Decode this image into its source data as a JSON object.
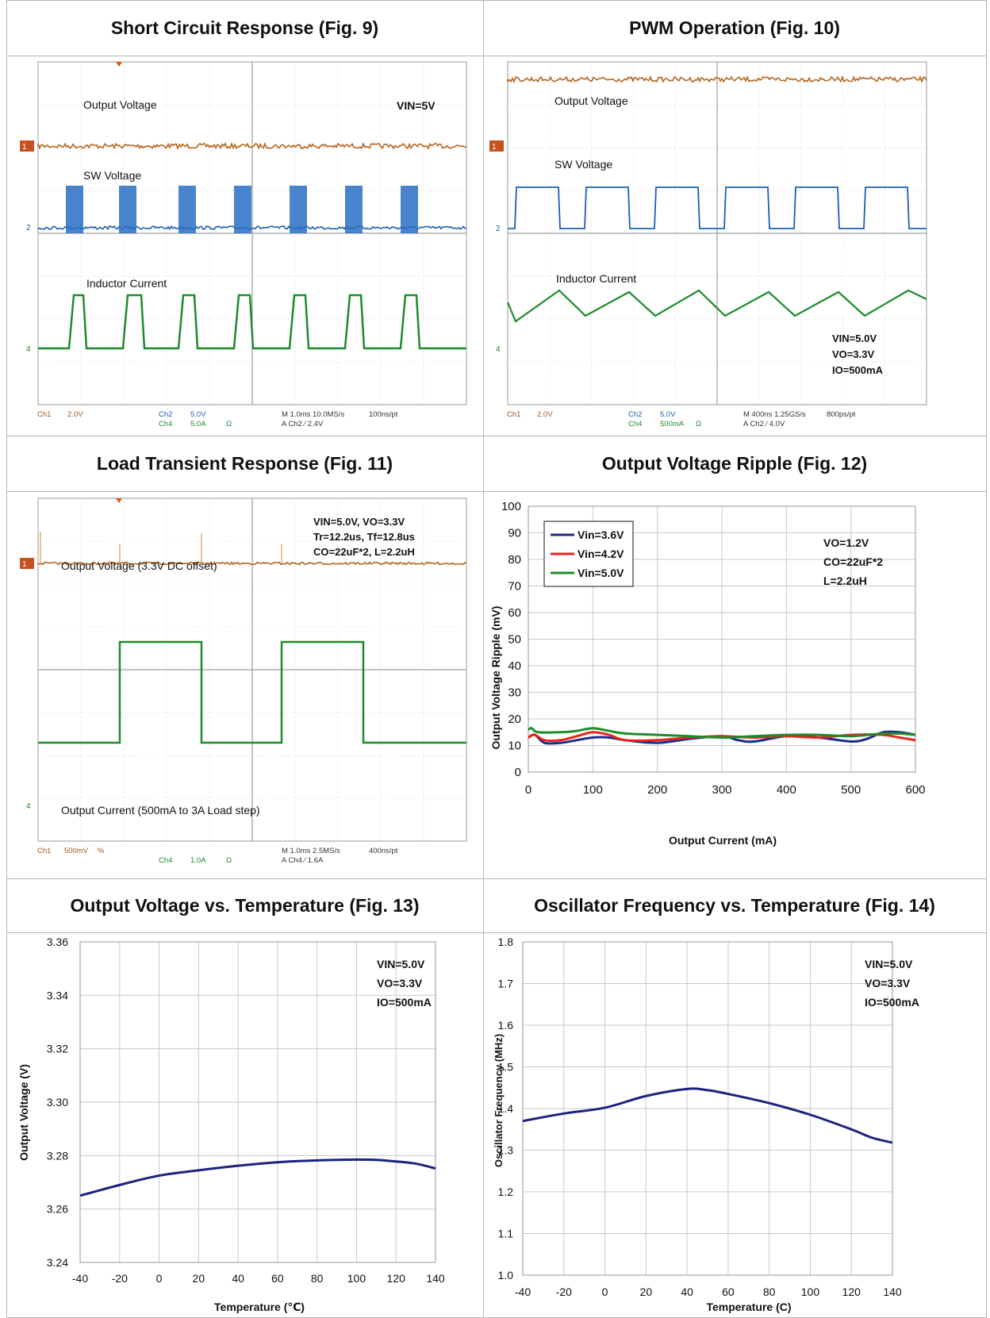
{
  "headers": {
    "fig9": "Short Circuit Response (Fig. 9)",
    "fig10": "PWM Operation (Fig. 10)",
    "fig11": "Load Transient Response (Fig. 11)",
    "fig12": "Output Voltage Ripple (Fig. 12)",
    "fig13": "Output Voltage vs. Temperature (Fig. 13)",
    "fig14": "Oscillator Frequency vs. Temperature (Fig. 14)"
  },
  "scopes": {
    "fig9": {
      "labels": [
        "Output Voltage",
        "SW Voltage",
        "Inductor Current"
      ],
      "cond_lines": [
        "VIN=5V"
      ],
      "ch_markers": [
        "1",
        "2",
        "4"
      ],
      "footer": {
        "ch1": "Ch1",
        "ch1_scale": "2.0V",
        "ch2": "Ch2",
        "ch2_scale": "5.0V",
        "ch4": "Ch4",
        "ch4_scale": "5.0A",
        "ohm": "Ω",
        "time": "M 1.0ms 10.0MS/s",
        "rate": "100ns/pt",
        "trigger": "A  Ch2  ⁄  2.4V"
      }
    },
    "fig10": {
      "labels": [
        "Output Voltage",
        "SW Voltage",
        "Inductor Current"
      ],
      "cond_lines": [
        "VIN=5.0V",
        "VO=3.3V",
        "IO=500mA"
      ],
      "ch_markers": [
        "1",
        "2",
        "4"
      ],
      "footer": {
        "ch1": "Ch1",
        "ch1_scale": "2.0V",
        "ch2": "Ch2",
        "ch2_scale": "5.0V",
        "ch4": "Ch4",
        "ch4_scale": "500mA",
        "ohm": "Ω",
        "time": "M 400ns 1.25GS/s",
        "rate": "800ps/pt",
        "trigger": "A  Ch2  ⁄  4.0V"
      }
    },
    "fig11": {
      "labels": [
        "Output Voltage (3.3V DC offset)",
        "Output Current (500mA to 3A Load step)"
      ],
      "cond_lines": [
        "VIN=5.0V, VO=3.3V",
        "Tr=12.2us, Tf=12.8us",
        "CO=22uF*2, L=2.2uH"
      ],
      "ch_markers": [
        "1",
        "4"
      ],
      "footer": {
        "ch1": "Ch1",
        "ch1_scale": "500mV",
        "bw": "%",
        "ch4": "Ch4",
        "ch4_scale": "1.0A",
        "ohm": "Ω",
        "time": "M 1.0ms 2.5MS/s",
        "rate": "400ns/pt",
        "trigger": "A  Ch4  ⁄  1.6A"
      }
    }
  },
  "chart_data": [
    {
      "id": "fig12",
      "type": "line",
      "title": "Output Voltage Ripple (Fig. 12)",
      "xlabel": "Output Current (mA)",
      "ylabel": "Output Voltage Ripple (mV)",
      "xlim": [
        0,
        600
      ],
      "ylim": [
        0,
        100
      ],
      "xticks": [
        "0",
        "100",
        "200",
        "300",
        "400",
        "500",
        "600"
      ],
      "yticks": [
        "0",
        "10",
        "20",
        "30",
        "40",
        "50",
        "60",
        "70",
        "80",
        "90",
        "100"
      ],
      "grid": true,
      "legend": "top-left",
      "annotation": [
        "VO=1.2V",
        "CO=22uF*2",
        "L=2.2uH"
      ],
      "series": [
        {
          "name": "Vin=3.6V",
          "color": "#1f2b8c",
          "x": [
            0,
            10,
            25,
            50,
            75,
            100,
            125,
            150,
            200,
            250,
            300,
            325,
            350,
            400,
            450,
            500,
            525,
            550,
            575,
            600
          ],
          "values": [
            13,
            14,
            11,
            11,
            12,
            13,
            13,
            12,
            11,
            12.5,
            13.5,
            12,
            11.5,
            13.5,
            13,
            11.5,
            12.5,
            15,
            15,
            14
          ]
        },
        {
          "name": "Vin=4.2V",
          "color": "#e8231c",
          "x": [
            0,
            10,
            25,
            50,
            75,
            100,
            125,
            150,
            200,
            250,
            300,
            350,
            400,
            450,
            500,
            550,
            575,
            600
          ],
          "values": [
            13,
            14,
            12,
            12,
            13.5,
            15,
            14,
            12,
            12,
            13,
            13.5,
            13,
            13.5,
            13,
            14,
            14,
            13,
            12
          ]
        },
        {
          "name": "Vin=5.0V",
          "color": "#1c8c2a",
          "x": [
            0,
            5,
            15,
            50,
            75,
            100,
            125,
            150,
            200,
            250,
            300,
            350,
            400,
            450,
            500,
            550,
            575,
            600
          ],
          "values": [
            16,
            16.5,
            15,
            15,
            15.5,
            16.5,
            15.5,
            14.5,
            14,
            13.5,
            13,
            13.5,
            14,
            14,
            13.5,
            14.5,
            14.5,
            14
          ]
        }
      ]
    },
    {
      "id": "fig13",
      "type": "line",
      "title": "Output Voltage vs. Temperature (Fig. 13)",
      "xlabel": "Temperature (℃)",
      "ylabel": "Output Voltage (V)",
      "xlim": [
        -40,
        140
      ],
      "ylim": [
        3.24,
        3.36
      ],
      "xticks": [
        "-40",
        "-20",
        "0",
        "20",
        "40",
        "60",
        "80",
        "100",
        "120",
        "140"
      ],
      "yticks": [
        "3.24",
        "3.26",
        "3.28",
        "3.30",
        "3.32",
        "3.34",
        "3.36"
      ],
      "grid": true,
      "annotation": [
        "VIN=5.0V",
        "VO=3.3V",
        "IO=500mA"
      ],
      "series": [
        {
          "color": "#1a237e",
          "x": [
            -40,
            -20,
            0,
            20,
            40,
            60,
            80,
            100,
            110,
            120,
            130,
            140
          ],
          "values": [
            3.265,
            3.269,
            3.2725,
            3.2745,
            3.2762,
            3.2775,
            3.2782,
            3.2785,
            3.2784,
            3.2778,
            3.277,
            3.2752
          ]
        }
      ]
    },
    {
      "id": "fig14",
      "type": "line",
      "title": "Oscillator Frequency vs. Temperature (Fig. 14)",
      "xlabel": "Temperature (C)",
      "ylabel": "Oscillator Frequency (MHz)",
      "xlim": [
        -40,
        140
      ],
      "ylim": [
        1.0,
        1.8
      ],
      "xticks": [
        "-40",
        "-20",
        "0",
        "20",
        "40",
        "60",
        "80",
        "100",
        "120",
        "140"
      ],
      "yticks": [
        "1.0",
        "1.1",
        "1.2",
        "1.3",
        "1.4",
        "1.5",
        "1.6",
        "1.7",
        "1.8"
      ],
      "grid": true,
      "annotation": [
        "VIN=5.0V",
        "VO=3.3V",
        "IO=500mA"
      ],
      "series": [
        {
          "color": "#1a237e",
          "x": [
            -40,
            -20,
            0,
            20,
            40,
            50,
            60,
            80,
            100,
            120,
            130,
            140
          ],
          "values": [
            1.37,
            1.388,
            1.402,
            1.43,
            1.447,
            1.444,
            1.435,
            1.413,
            1.385,
            1.35,
            1.33,
            1.318
          ]
        }
      ]
    }
  ]
}
